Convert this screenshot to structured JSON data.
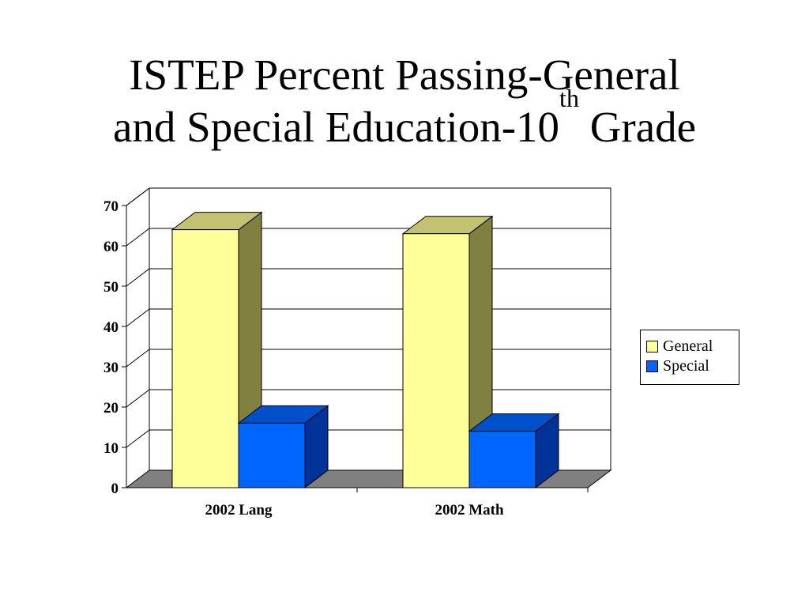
{
  "slide": {
    "title_line1": "ISTEP Percent Passing-General",
    "title_line2_pre": "and Special Education-10",
    "title_line2_sup": "th",
    "title_line2_post": " Grade"
  },
  "chart_data": {
    "type": "bar",
    "three_d": true,
    "title": "",
    "xlabel": "",
    "ylabel": "",
    "categories": [
      "2002 Lang",
      "2002 Math"
    ],
    "series": [
      {
        "name": "General",
        "values": [
          64,
          63
        ],
        "color": "#ffff99",
        "side_color": "#808040",
        "top_color": "#c2c270"
      },
      {
        "name": "Special",
        "values": [
          16,
          14
        ],
        "color": "#0066ff",
        "side_color": "#003399",
        "top_color": "#0050cc"
      }
    ],
    "ylim": [
      0,
      70
    ],
    "yticks": [
      0,
      10,
      20,
      30,
      40,
      50,
      60,
      70
    ],
    "grid": true,
    "floor_color": "#808080",
    "legend": {
      "position": "right",
      "entries": [
        "General",
        "Special"
      ]
    }
  }
}
